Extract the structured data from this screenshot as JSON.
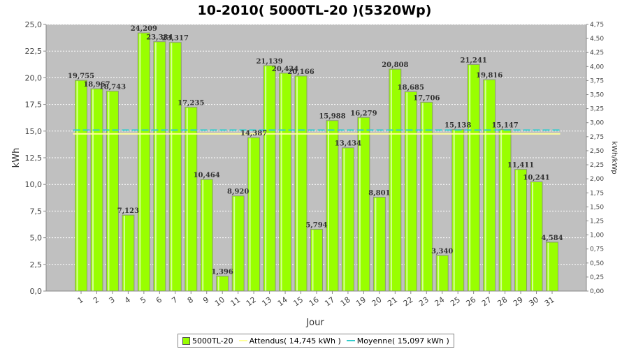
{
  "chart_data": {
    "type": "bar",
    "title": "10-2010( 5000TL-20 )(5320Wp)",
    "xlabel": "Jour",
    "ylabel": "kWh",
    "ylabel_right": "kWh/kWp",
    "categories": [
      "1",
      "2",
      "3",
      "4",
      "5",
      "6",
      "7",
      "8",
      "9",
      "10",
      "11",
      "12",
      "13",
      "14",
      "15",
      "16",
      "17",
      "18",
      "19",
      "20",
      "21",
      "22",
      "23",
      "24",
      "25",
      "26",
      "27",
      "28",
      "29",
      "30",
      "31"
    ],
    "series": [
      {
        "name": "5000TL-20",
        "values": [
          19.755,
          18.967,
          18.743,
          7.123,
          24.209,
          23.384,
          23.317,
          17.235,
          10.464,
          1.396,
          8.92,
          14.387,
          21.139,
          20.434,
          20.166,
          5.794,
          15.988,
          13.434,
          16.279,
          8.801,
          20.808,
          18.685,
          17.706,
          3.34,
          15.138,
          21.241,
          19.816,
          15.147,
          11.411,
          10.241,
          4.584
        ],
        "labels": [
          "19,755",
          "18,967",
          "18,743",
          "7,123",
          "24,209",
          "23,384",
          "23,317",
          "17,235",
          "10,464",
          "1,396",
          "8,920",
          "14,387",
          "21,139",
          "20,434",
          "20,166",
          "5,794",
          "15,988",
          "13,434",
          "16,279",
          "8,801",
          "20,808",
          "18,685",
          "17,706",
          "3,340",
          "15,138",
          "21,241",
          "19,816",
          "15,147",
          "11,411",
          "10,241",
          "4,584"
        ],
        "color": "#99ff00"
      }
    ],
    "lines": [
      {
        "name": "Attendus( 14,745 kWh )",
        "value": 14.745,
        "color": "#ffff99"
      },
      {
        "name": "Moyenne( 15,097 kWh )",
        "value": 15.097,
        "color": "#33cccc"
      }
    ],
    "ylim": [
      0,
      25
    ],
    "y_ticks": [
      "0,0",
      "2,5",
      "5,0",
      "7,5",
      "10,0",
      "12,5",
      "15,0",
      "17,5",
      "20,0",
      "22,5",
      "25,0"
    ],
    "ylim_right": [
      0,
      4.75
    ],
    "y_ticks_right": [
      "0,00",
      "0,25",
      "0,50",
      "0,75",
      "1,00",
      "1,25",
      "1,50",
      "1,75",
      "2,00",
      "2,25",
      "2,50",
      "2,75",
      "3,00",
      "3,25",
      "3,50",
      "3,75",
      "4,00",
      "4,25",
      "4,50",
      "4,75"
    ],
    "grid": true,
    "legend_position": "bottom"
  }
}
